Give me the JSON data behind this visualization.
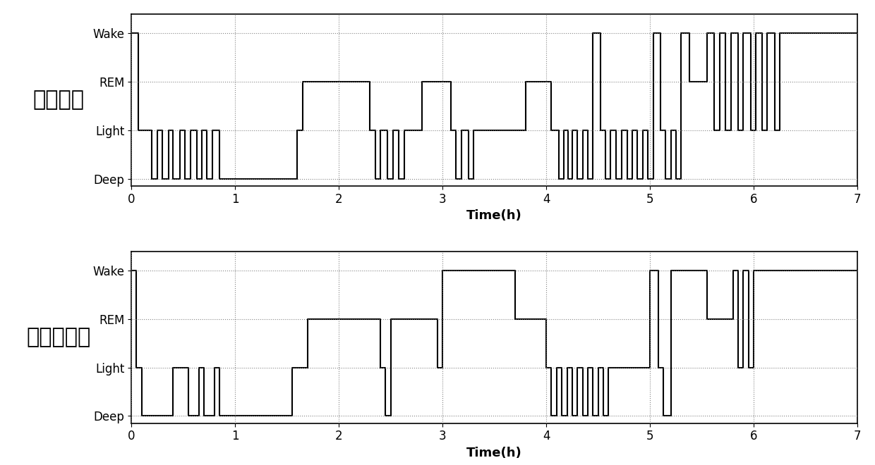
{
  "title1": "医生标注",
  "title2": "本发明方法",
  "xlabel": "Time(h)",
  "yticks": [
    0,
    1,
    2,
    3
  ],
  "yticklabels": [
    "Deep",
    "Light",
    "REM",
    "Wake"
  ],
  "xlim": [
    0,
    7
  ],
  "ylim": [
    -0.15,
    3.4
  ],
  "xticks": [
    0,
    1,
    2,
    3,
    4,
    5,
    6,
    7
  ],
  "doc_stages": [
    [
      0.0,
      "Wake"
    ],
    [
      0.07,
      "Light"
    ],
    [
      0.2,
      "Deep"
    ],
    [
      0.25,
      "Light"
    ],
    [
      0.3,
      "Deep"
    ],
    [
      0.36,
      "Light"
    ],
    [
      0.4,
      "Deep"
    ],
    [
      0.47,
      "Light"
    ],
    [
      0.52,
      "Deep"
    ],
    [
      0.57,
      "Light"
    ],
    [
      0.63,
      "Deep"
    ],
    [
      0.68,
      "Light"
    ],
    [
      0.73,
      "Deep"
    ],
    [
      0.78,
      "Light"
    ],
    [
      0.85,
      "Deep"
    ],
    [
      1.6,
      "Light"
    ],
    [
      1.65,
      "REM"
    ],
    [
      2.3,
      "Light"
    ],
    [
      2.35,
      "Deep"
    ],
    [
      2.4,
      "Light"
    ],
    [
      2.47,
      "Deep"
    ],
    [
      2.52,
      "Light"
    ],
    [
      2.58,
      "Deep"
    ],
    [
      2.63,
      "Light"
    ],
    [
      2.8,
      "REM"
    ],
    [
      3.08,
      "Light"
    ],
    [
      3.13,
      "Deep"
    ],
    [
      3.18,
      "Light"
    ],
    [
      3.25,
      "Deep"
    ],
    [
      3.3,
      "Light"
    ],
    [
      3.8,
      "REM"
    ],
    [
      4.05,
      "Light"
    ],
    [
      4.12,
      "Deep"
    ],
    [
      4.17,
      "Light"
    ],
    [
      4.21,
      "Deep"
    ],
    [
      4.25,
      "Light"
    ],
    [
      4.3,
      "Deep"
    ],
    [
      4.35,
      "Light"
    ],
    [
      4.4,
      "Deep"
    ],
    [
      4.45,
      "Wake"
    ],
    [
      4.52,
      "Light"
    ],
    [
      4.57,
      "Deep"
    ],
    [
      4.62,
      "Light"
    ],
    [
      4.67,
      "Deep"
    ],
    [
      4.73,
      "Light"
    ],
    [
      4.78,
      "Deep"
    ],
    [
      4.83,
      "Light"
    ],
    [
      4.88,
      "Deep"
    ],
    [
      4.93,
      "Light"
    ],
    [
      4.98,
      "Deep"
    ],
    [
      5.03,
      "Wake"
    ],
    [
      5.1,
      "Light"
    ],
    [
      5.15,
      "Deep"
    ],
    [
      5.2,
      "Light"
    ],
    [
      5.25,
      "Deep"
    ],
    [
      5.3,
      "Wake"
    ],
    [
      5.38,
      "REM"
    ],
    [
      5.55,
      "Wake"
    ],
    [
      5.62,
      "Light"
    ],
    [
      5.67,
      "Wake"
    ],
    [
      5.73,
      "Light"
    ],
    [
      5.78,
      "Wake"
    ],
    [
      5.85,
      "Light"
    ],
    [
      5.9,
      "Wake"
    ],
    [
      5.97,
      "Light"
    ],
    [
      6.02,
      "Wake"
    ],
    [
      6.08,
      "Light"
    ],
    [
      6.13,
      "Wake"
    ],
    [
      6.2,
      "Light"
    ],
    [
      6.25,
      "Wake"
    ],
    [
      7.0,
      "Wake"
    ]
  ],
  "auto_stages": [
    [
      0.0,
      "Wake"
    ],
    [
      0.05,
      "Light"
    ],
    [
      0.1,
      "Deep"
    ],
    [
      0.4,
      "Light"
    ],
    [
      0.55,
      "Deep"
    ],
    [
      0.65,
      "Light"
    ],
    [
      0.7,
      "Deep"
    ],
    [
      0.8,
      "Light"
    ],
    [
      0.85,
      "Deep"
    ],
    [
      1.55,
      "Light"
    ],
    [
      1.7,
      "REM"
    ],
    [
      2.4,
      "Light"
    ],
    [
      2.45,
      "Deep"
    ],
    [
      2.5,
      "REM"
    ],
    [
      2.95,
      "Light"
    ],
    [
      3.0,
      "Wake"
    ],
    [
      3.7,
      "REM"
    ],
    [
      4.0,
      "Light"
    ],
    [
      4.05,
      "Deep"
    ],
    [
      4.1,
      "Light"
    ],
    [
      4.15,
      "Deep"
    ],
    [
      4.2,
      "Light"
    ],
    [
      4.25,
      "Deep"
    ],
    [
      4.3,
      "Light"
    ],
    [
      4.35,
      "Deep"
    ],
    [
      4.4,
      "Light"
    ],
    [
      4.45,
      "Deep"
    ],
    [
      4.5,
      "Light"
    ],
    [
      4.55,
      "Deep"
    ],
    [
      4.6,
      "Light"
    ],
    [
      5.0,
      "Wake"
    ],
    [
      5.08,
      "Light"
    ],
    [
      5.13,
      "Deep"
    ],
    [
      5.2,
      "Wake"
    ],
    [
      5.55,
      "REM"
    ],
    [
      5.8,
      "Wake"
    ],
    [
      5.85,
      "Light"
    ],
    [
      5.9,
      "Wake"
    ],
    [
      5.95,
      "Light"
    ],
    [
      6.0,
      "Wake"
    ],
    [
      7.0,
      "Wake"
    ]
  ],
  "stage_map": {
    "Deep": 0,
    "Light": 1,
    "REM": 2,
    "Wake": 3
  },
  "line_color": "#000000",
  "bg_color": "#ffffff",
  "grid_color": "#777777",
  "title_fontsize": 22,
  "label_fontsize": 13,
  "tick_fontsize": 12
}
